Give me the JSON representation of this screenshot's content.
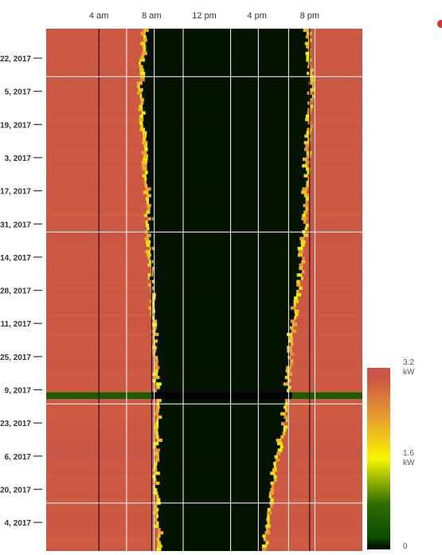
{
  "chart_data": {
    "type": "heatmap",
    "title": "",
    "xlabel": "",
    "ylabel": "",
    "x_axis": {
      "range_hours": [
        0,
        24
      ],
      "tick_hours": [
        4,
        8,
        12,
        16,
        20
      ],
      "tick_labels": [
        "4 am",
        "8 am",
        "12 pm",
        "4 pm",
        "8 pm"
      ]
    },
    "y_axis": {
      "tick_labels": [
        "22, 2017",
        "5, 2017",
        "19, 2017",
        "3, 2017",
        "17, 2017",
        "31, 2017",
        "14, 2017",
        "28, 2017",
        "11, 2017",
        "25, 2017",
        "9, 2017",
        "23, 2017",
        "6, 2017",
        "20, 2017",
        "4, 2017"
      ]
    },
    "grid": true,
    "colorbar": {
      "placement": "right",
      "max_label": "3.2\nkW",
      "mid_label": "1.6\nkW",
      "min_label": "0",
      "max_value": 3.2,
      "mid_value": 1.6,
      "min_value": 0,
      "colors": [
        "#000000",
        "#0c4a00",
        "#2f6e00",
        "#f5f500",
        "#e8a030",
        "#cd5a43",
        "#c65449"
      ]
    },
    "days_shown": 158,
    "value_high_kw": 3.1,
    "value_low_kw": 0.05,
    "dark_row_day": 110,
    "dark_row_kw": 0.0,
    "high_band_rows": [
      {
        "day": 0,
        "end_morning_hour": 7.3,
        "start_evening_hour": 20.0
      },
      {
        "day": 15,
        "end_morning_hour": 7.0,
        "start_evening_hour": 20.3
      },
      {
        "day": 30,
        "end_morning_hour": 7.2,
        "start_evening_hour": 20.1
      },
      {
        "day": 45,
        "end_morning_hour": 7.4,
        "start_evening_hour": 19.9
      },
      {
        "day": 60,
        "end_morning_hour": 7.6,
        "start_evening_hour": 19.8
      },
      {
        "day": 75,
        "end_morning_hour": 7.8,
        "start_evening_hour": 19.4
      },
      {
        "day": 90,
        "end_morning_hour": 8.0,
        "start_evening_hour": 18.9
      },
      {
        "day": 105,
        "end_morning_hour": 8.2,
        "start_evening_hour": 18.6
      },
      {
        "day": 120,
        "end_morning_hour": 8.3,
        "start_evening_hour": 18.2
      },
      {
        "day": 135,
        "end_morning_hour": 8.2,
        "start_evening_hour": 17.4
      },
      {
        "day": 150,
        "end_morning_hour": 8.3,
        "start_evening_hour": 16.9
      },
      {
        "day": 157,
        "end_morning_hour": 8.4,
        "start_evening_hour": 16.7
      }
    ]
  },
  "colors": {
    "accent_dot": "#e32b2b",
    "grid_white": "#ffffff",
    "grid_black": "#000000"
  }
}
